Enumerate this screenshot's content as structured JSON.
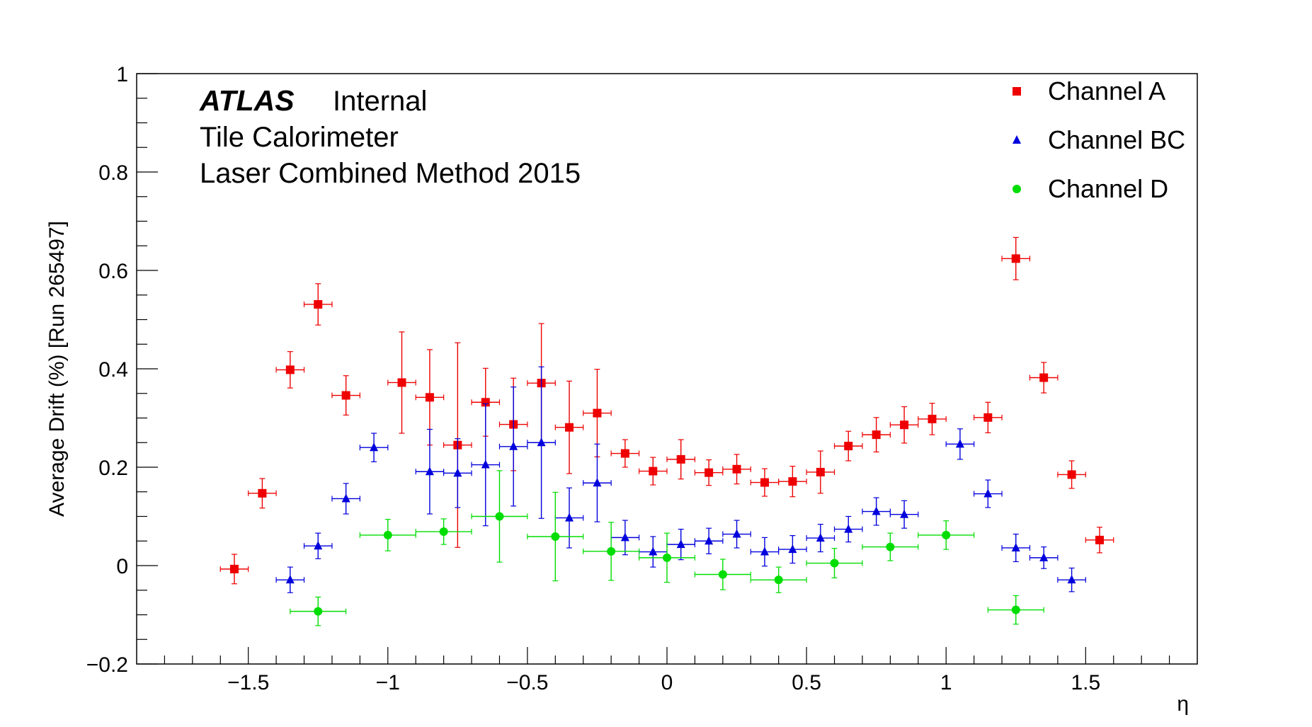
{
  "chart_data": {
    "type": "scatter",
    "title": "",
    "xlabel": "η",
    "ylabel": "Average Drift (%) [Run 265497]",
    "xlim": [
      -1.9,
      1.9
    ],
    "ylim": [
      -0.2,
      1.0
    ],
    "x_ticks": [
      {
        "v": -1.5,
        "label": "−1.5"
      },
      {
        "v": -1.0,
        "label": "−1"
      },
      {
        "v": -0.5,
        "label": "−0.5"
      },
      {
        "v": 0,
        "label": "0"
      },
      {
        "v": 0.5,
        "label": "0.5"
      },
      {
        "v": 1.0,
        "label": "1"
      },
      {
        "v": 1.5,
        "label": "1.5"
      }
    ],
    "y_ticks": [
      {
        "v": -0.2,
        "label": "−0.2"
      },
      {
        "v": 0,
        "label": "0"
      },
      {
        "v": 0.2,
        "label": "0.2"
      },
      {
        "v": 0.4,
        "label": "0.4"
      },
      {
        "v": 0.6,
        "label": "0.6"
      },
      {
        "v": 0.8,
        "label": "0.8"
      },
      {
        "v": 1.0,
        "label": "1"
      }
    ],
    "annotations": {
      "atlas": "ATLAS",
      "status": "Internal",
      "line2": "Tile Calorimeter",
      "line3": "Laser Combined Method 2015"
    },
    "legend_position": "top-right",
    "series": [
      {
        "name": "Channel A",
        "marker": "square",
        "color": "#ee0000",
        "points": [
          {
            "x": -1.55,
            "y": -0.007,
            "xerr": 0.05,
            "yerr": 0.03
          },
          {
            "x": -1.45,
            "y": 0.147,
            "xerr": 0.05,
            "yerr": 0.03
          },
          {
            "x": -1.35,
            "y": 0.398,
            "xerr": 0.05,
            "yerr": 0.037
          },
          {
            "x": -1.25,
            "y": 0.531,
            "xerr": 0.05,
            "yerr": 0.042
          },
          {
            "x": -1.15,
            "y": 0.346,
            "xerr": 0.05,
            "yerr": 0.04
          },
          {
            "x": -0.95,
            "y": 0.372,
            "xerr": 0.05,
            "yerr": 0.103
          },
          {
            "x": -0.85,
            "y": 0.342,
            "xerr": 0.05,
            "yerr": 0.097
          },
          {
            "x": -0.75,
            "y": 0.245,
            "xerr": 0.05,
            "yerr": 0.208
          },
          {
            "x": -0.65,
            "y": 0.332,
            "xerr": 0.05,
            "yerr": 0.069
          },
          {
            "x": -0.55,
            "y": 0.287,
            "xerr": 0.05,
            "yerr": 0.094
          },
          {
            "x": -0.45,
            "y": 0.371,
            "xerr": 0.05,
            "yerr": 0.121
          },
          {
            "x": -0.35,
            "y": 0.281,
            "xerr": 0.05,
            "yerr": 0.094
          },
          {
            "x": -0.25,
            "y": 0.31,
            "xerr": 0.05,
            "yerr": 0.089
          },
          {
            "x": -0.15,
            "y": 0.228,
            "xerr": 0.05,
            "yerr": 0.028
          },
          {
            "x": -0.05,
            "y": 0.192,
            "xerr": 0.05,
            "yerr": 0.028
          },
          {
            "x": 0.05,
            "y": 0.216,
            "xerr": 0.05,
            "yerr": 0.04
          },
          {
            "x": 0.15,
            "y": 0.189,
            "xerr": 0.05,
            "yerr": 0.026
          },
          {
            "x": 0.25,
            "y": 0.196,
            "xerr": 0.05,
            "yerr": 0.03
          },
          {
            "x": 0.35,
            "y": 0.169,
            "xerr": 0.05,
            "yerr": 0.028
          },
          {
            "x": 0.45,
            "y": 0.171,
            "xerr": 0.05,
            "yerr": 0.031
          },
          {
            "x": 0.55,
            "y": 0.19,
            "xerr": 0.05,
            "yerr": 0.043
          },
          {
            "x": 0.65,
            "y": 0.243,
            "xerr": 0.05,
            "yerr": 0.03
          },
          {
            "x": 0.75,
            "y": 0.266,
            "xerr": 0.05,
            "yerr": 0.035
          },
          {
            "x": 0.85,
            "y": 0.286,
            "xerr": 0.05,
            "yerr": 0.037
          },
          {
            "x": 0.95,
            "y": 0.298,
            "xerr": 0.05,
            "yerr": 0.032
          },
          {
            "x": 1.15,
            "y": 0.301,
            "xerr": 0.05,
            "yerr": 0.031
          },
          {
            "x": 1.25,
            "y": 0.624,
            "xerr": 0.05,
            "yerr": 0.043
          },
          {
            "x": 1.35,
            "y": 0.382,
            "xerr": 0.05,
            "yerr": 0.031
          },
          {
            "x": 1.45,
            "y": 0.185,
            "xerr": 0.05,
            "yerr": 0.028
          },
          {
            "x": 1.55,
            "y": 0.052,
            "xerr": 0.05,
            "yerr": 0.026
          }
        ]
      },
      {
        "name": "Channel BC",
        "marker": "triangle",
        "color": "#0000dd",
        "points": [
          {
            "x": -1.35,
            "y": -0.029,
            "xerr": 0.05,
            "yerr": 0.026
          },
          {
            "x": -1.25,
            "y": 0.04,
            "xerr": 0.05,
            "yerr": 0.026
          },
          {
            "x": -1.15,
            "y": 0.136,
            "xerr": 0.05,
            "yerr": 0.031
          },
          {
            "x": -1.05,
            "y": 0.24,
            "xerr": 0.05,
            "yerr": 0.029
          },
          {
            "x": -0.85,
            "y": 0.191,
            "xerr": 0.05,
            "yerr": 0.086
          },
          {
            "x": -0.75,
            "y": 0.188,
            "xerr": 0.05,
            "yerr": 0.07
          },
          {
            "x": -0.65,
            "y": 0.205,
            "xerr": 0.05,
            "yerr": 0.124
          },
          {
            "x": -0.55,
            "y": 0.242,
            "xerr": 0.05,
            "yerr": 0.121
          },
          {
            "x": -0.45,
            "y": 0.25,
            "xerr": 0.05,
            "yerr": 0.154
          },
          {
            "x": -0.35,
            "y": 0.097,
            "xerr": 0.05,
            "yerr": 0.061
          },
          {
            "x": -0.25,
            "y": 0.168,
            "xerr": 0.05,
            "yerr": 0.079
          },
          {
            "x": -0.15,
            "y": 0.057,
            "xerr": 0.05,
            "yerr": 0.035
          },
          {
            "x": -0.05,
            "y": 0.028,
            "xerr": 0.05,
            "yerr": 0.031
          },
          {
            "x": 0.05,
            "y": 0.043,
            "xerr": 0.05,
            "yerr": 0.031
          },
          {
            "x": 0.15,
            "y": 0.05,
            "xerr": 0.05,
            "yerr": 0.026
          },
          {
            "x": 0.25,
            "y": 0.064,
            "xerr": 0.05,
            "yerr": 0.028
          },
          {
            "x": 0.35,
            "y": 0.028,
            "xerr": 0.05,
            "yerr": 0.029
          },
          {
            "x": 0.45,
            "y": 0.033,
            "xerr": 0.05,
            "yerr": 0.028
          },
          {
            "x": 0.55,
            "y": 0.056,
            "xerr": 0.05,
            "yerr": 0.028
          },
          {
            "x": 0.65,
            "y": 0.074,
            "xerr": 0.05,
            "yerr": 0.026
          },
          {
            "x": 0.75,
            "y": 0.11,
            "xerr": 0.05,
            "yerr": 0.028
          },
          {
            "x": 0.85,
            "y": 0.104,
            "xerr": 0.05,
            "yerr": 0.028
          },
          {
            "x": 1.05,
            "y": 0.247,
            "xerr": 0.05,
            "yerr": 0.031
          },
          {
            "x": 1.15,
            "y": 0.146,
            "xerr": 0.05,
            "yerr": 0.028
          },
          {
            "x": 1.25,
            "y": 0.036,
            "xerr": 0.05,
            "yerr": 0.028
          },
          {
            "x": 1.35,
            "y": 0.016,
            "xerr": 0.05,
            "yerr": 0.022
          },
          {
            "x": 1.45,
            "y": -0.029,
            "xerr": 0.05,
            "yerr": 0.024
          }
        ]
      },
      {
        "name": "Channel D",
        "marker": "circle",
        "color": "#00dd00",
        "points": [
          {
            "x": -1.25,
            "y": -0.093,
            "xerr": 0.1,
            "yerr": 0.029
          },
          {
            "x": -1.0,
            "y": 0.062,
            "xerr": 0.1,
            "yerr": 0.032
          },
          {
            "x": -0.8,
            "y": 0.069,
            "xerr": 0.1,
            "yerr": 0.026
          },
          {
            "x": -0.6,
            "y": 0.1,
            "xerr": 0.1,
            "yerr": 0.093
          },
          {
            "x": -0.4,
            "y": 0.059,
            "xerr": 0.1,
            "yerr": 0.09
          },
          {
            "x": -0.2,
            "y": 0.029,
            "xerr": 0.1,
            "yerr": 0.059
          },
          {
            "x": 0.0,
            "y": 0.016,
            "xerr": 0.1,
            "yerr": 0.05
          },
          {
            "x": 0.2,
            "y": -0.018,
            "xerr": 0.1,
            "yerr": 0.031
          },
          {
            "x": 0.4,
            "y": -0.029,
            "xerr": 0.1,
            "yerr": 0.026
          },
          {
            "x": 0.6,
            "y": 0.005,
            "xerr": 0.1,
            "yerr": 0.03
          },
          {
            "x": 0.8,
            "y": 0.038,
            "xerr": 0.1,
            "yerr": 0.028
          },
          {
            "x": 1.0,
            "y": 0.062,
            "xerr": 0.1,
            "yerr": 0.029
          },
          {
            "x": 1.25,
            "y": -0.09,
            "xerr": 0.1,
            "yerr": 0.029
          }
        ]
      }
    ]
  }
}
